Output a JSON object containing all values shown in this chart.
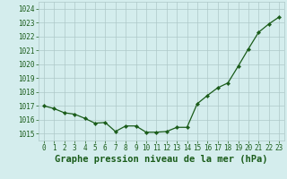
{
  "x": [
    0,
    1,
    2,
    3,
    4,
    5,
    6,
    7,
    8,
    9,
    10,
    11,
    12,
    13,
    14,
    15,
    16,
    17,
    18,
    19,
    20,
    21,
    22,
    23
  ],
  "y": [
    1017.0,
    1016.8,
    1016.5,
    1016.4,
    1016.1,
    1015.75,
    1015.8,
    1015.15,
    1015.55,
    1015.55,
    1015.1,
    1015.1,
    1015.15,
    1015.45,
    1015.45,
    1017.15,
    1017.75,
    1018.3,
    1018.65,
    1019.85,
    1021.1,
    1022.3,
    1022.9,
    1023.4
  ],
  "line_color": "#1a5c1a",
  "marker": "D",
  "marker_size": 2.2,
  "bg_color": "#d4eded",
  "grid_color": "#aec8c8",
  "title": "Graphe pression niveau de la mer (hPa)",
  "xlabel_color": "#1a5c1a",
  "tick_color": "#1a5c1a",
  "ylim": [
    1014.5,
    1024.5
  ],
  "yticks": [
    1015,
    1016,
    1017,
    1018,
    1019,
    1020,
    1021,
    1022,
    1023,
    1024
  ],
  "xlim": [
    -0.5,
    23.5
  ],
  "xticks": [
    0,
    1,
    2,
    3,
    4,
    5,
    6,
    7,
    8,
    9,
    10,
    11,
    12,
    13,
    14,
    15,
    16,
    17,
    18,
    19,
    20,
    21,
    22,
    23
  ],
  "title_fontsize": 7.5,
  "tick_fontsize": 5.5,
  "linewidth": 0.9
}
